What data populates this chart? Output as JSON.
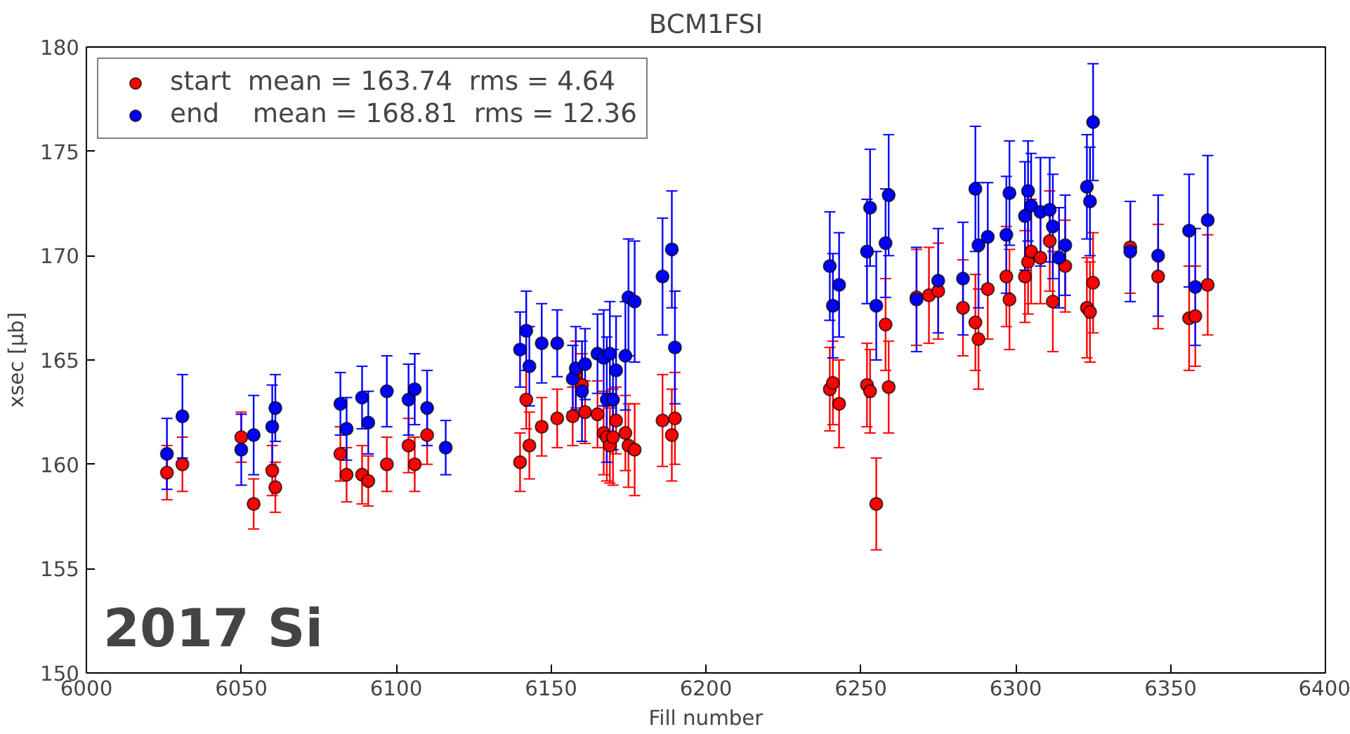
{
  "chart_data": {
    "type": "scatter",
    "title": "BCM1FSI",
    "xlabel": "Fill number",
    "ylabel": "xsec [μb]",
    "xlim": [
      6000,
      6400
    ],
    "xticks": [
      6000,
      6050,
      6100,
      6150,
      6200,
      6250,
      6300,
      6350,
      6400
    ],
    "ylim": [
      150,
      180
    ],
    "yticks": [
      150,
      155,
      160,
      165,
      170,
      175,
      180
    ],
    "grid": false,
    "legend": "top left",
    "marker": "circle",
    "annotations": [
      "2017 Si"
    ],
    "series": [
      {
        "name": "start  mean = 163.74  rms = 4.64",
        "color": "#ff0000",
        "x": [
          6026,
          6031,
          6050,
          6054,
          6060,
          6061,
          6082,
          6084,
          6089,
          6091,
          6097,
          6104,
          6106,
          6110,
          6140,
          6142,
          6143,
          6147,
          6152,
          6157,
          6158,
          6160,
          6161,
          6165,
          6167,
          6168,
          6169,
          6170,
          6171,
          6174,
          6175,
          6177,
          6186,
          6189,
          6190,
          6240,
          6241,
          6243,
          6252,
          6253,
          6255,
          6258,
          6259,
          6268,
          6272,
          6275,
          6283,
          6287,
          6288,
          6291,
          6297,
          6298,
          6303,
          6304,
          6305,
          6308,
          6311,
          6312,
          6316,
          6323,
          6324,
          6325,
          6337,
          6346,
          6356,
          6358,
          6362
        ],
        "values": [
          159.6,
          160.0,
          161.3,
          158.1,
          159.7,
          158.9,
          160.5,
          159.5,
          159.5,
          159.2,
          160.0,
          160.9,
          160.0,
          161.4,
          160.1,
          163.1,
          160.9,
          161.8,
          162.2,
          162.3,
          164.3,
          163.8,
          162.5,
          162.4,
          161.5,
          161.3,
          160.9,
          161.3,
          162.1,
          161.5,
          160.9,
          160.7,
          162.1,
          161.4,
          162.2,
          163.6,
          163.9,
          162.9,
          163.8,
          163.5,
          158.1,
          166.7,
          163.7,
          168.0,
          168.1,
          168.3,
          167.5,
          166.8,
          166.0,
          168.4,
          169.0,
          167.9,
          169.0,
          169.7,
          170.2,
          169.9,
          170.7,
          167.8,
          169.5,
          167.5,
          167.3,
          168.7,
          170.4,
          169.0,
          167.0,
          167.1,
          168.6
        ],
        "errors": [
          1.3,
          1.3,
          1.2,
          1.2,
          1.2,
          1.2,
          1.3,
          1.3,
          1.4,
          1.2,
          1.3,
          1.3,
          1.3,
          1.4,
          1.4,
          1.4,
          1.6,
          1.4,
          1.4,
          1.4,
          1.6,
          1.5,
          1.5,
          1.6,
          2.0,
          2.1,
          1.8,
          2.3,
          1.6,
          1.8,
          2.0,
          2.2,
          2.2,
          2.2,
          2.2,
          2.0,
          2.0,
          2.1,
          2.0,
          2.0,
          2.2,
          2.2,
          2.2,
          2.3,
          2.3,
          2.3,
          2.3,
          2.3,
          2.4,
          2.4,
          2.4,
          2.4,
          2.2,
          2.5,
          2.5,
          2.2,
          2.4,
          2.4,
          2.2,
          2.4,
          2.4,
          2.4,
          2.2,
          2.5,
          2.5,
          2.4,
          2.4
        ]
      },
      {
        "name": "end    mean = 168.81  rms = 12.36",
        "color": "#0000ff",
        "x": [
          6026,
          6031,
          6050,
          6054,
          6060,
          6061,
          6082,
          6084,
          6089,
          6091,
          6097,
          6104,
          6106,
          6110,
          6116,
          6140,
          6142,
          6143,
          6147,
          6152,
          6157,
          6158,
          6160,
          6161,
          6165,
          6167,
          6168,
          6169,
          6170,
          6171,
          6174,
          6175,
          6177,
          6186,
          6189,
          6190,
          6240,
          6241,
          6243,
          6252,
          6253,
          6255,
          6258,
          6259,
          6268,
          6275,
          6283,
          6287,
          6288,
          6291,
          6297,
          6298,
          6303,
          6304,
          6305,
          6308,
          6311,
          6312,
          6314,
          6316,
          6323,
          6324,
          6325,
          6337,
          6346,
          6356,
          6358,
          6362
        ],
        "values": [
          160.5,
          162.3,
          160.7,
          161.4,
          161.8,
          162.7,
          162.9,
          161.7,
          163.2,
          162.0,
          163.5,
          163.1,
          163.6,
          162.7,
          160.8,
          165.5,
          166.4,
          164.7,
          165.8,
          165.8,
          164.1,
          164.6,
          163.5,
          164.8,
          165.3,
          165.1,
          163.1,
          165.3,
          163.1,
          164.5,
          165.2,
          168.0,
          167.8,
          169.0,
          170.3,
          165.6,
          169.5,
          167.6,
          168.6,
          170.2,
          172.3,
          167.6,
          170.6,
          172.9,
          167.9,
          168.8,
          168.9,
          173.2,
          170.5,
          170.9,
          171.0,
          173.0,
          171.9,
          173.1,
          172.4,
          172.1,
          172.2,
          171.4,
          169.9,
          170.5,
          173.3,
          172.6,
          176.4,
          170.2,
          170.0,
          171.2,
          168.5,
          171.7
        ],
        "errors": [
          1.7,
          2.0,
          1.7,
          1.9,
          2.0,
          1.6,
          1.5,
          1.5,
          1.5,
          1.5,
          1.7,
          1.7,
          1.7,
          1.8,
          1.3,
          1.8,
          1.9,
          1.9,
          1.9,
          1.6,
          1.6,
          2.0,
          2.4,
          1.7,
          1.9,
          2.3,
          3.0,
          2.5,
          2.4,
          2.6,
          2.6,
          2.8,
          2.9,
          2.8,
          2.8,
          2.7,
          2.6,
          2.5,
          2.5,
          2.5,
          2.8,
          2.6,
          2.6,
          2.9,
          2.5,
          2.5,
          2.7,
          3.0,
          3.0,
          2.6,
          2.8,
          2.5,
          2.6,
          2.4,
          2.5,
          2.6,
          2.5,
          2.5,
          2.4,
          2.4,
          2.5,
          2.6,
          2.8,
          2.4,
          2.9,
          2.7,
          2.8,
          3.1
        ]
      }
    ]
  }
}
